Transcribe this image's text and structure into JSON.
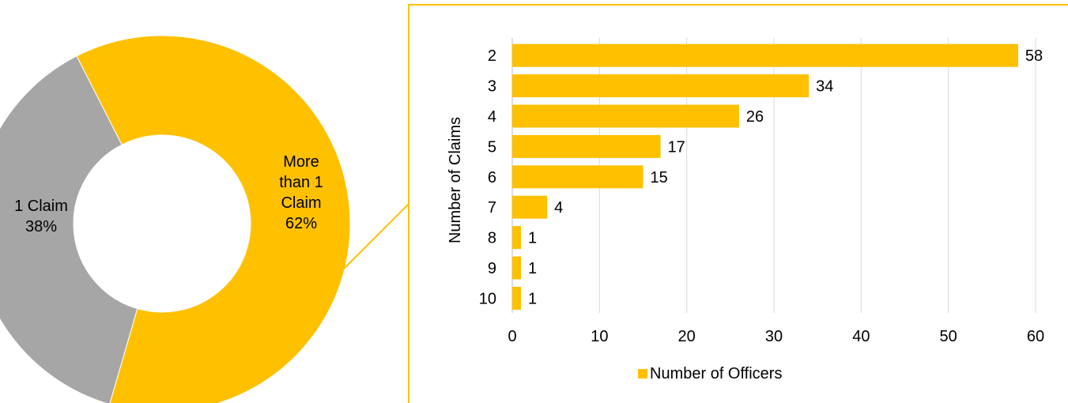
{
  "colors": {
    "accent": "#FFC000",
    "secondary": "#A6A6A6",
    "grid": "#D9D9D9",
    "text": "#000000"
  },
  "chart_data": [
    {
      "type": "pie",
      "variant": "donut",
      "slices": [
        {
          "label_lines": [
            "More",
            "than 1",
            "Claim",
            "62%"
          ],
          "category": "More than 1 Claim",
          "value": 62,
          "color": "#FFC000"
        },
        {
          "label_lines": [
            "1 Claim",
            "38%"
          ],
          "category": "1 Claim",
          "value": 38,
          "color": "#A6A6A6"
        }
      ]
    },
    {
      "type": "bar",
      "orientation": "horizontal",
      "categories": [
        "2",
        "3",
        "4",
        "5",
        "6",
        "7",
        "8",
        "9",
        "10"
      ],
      "series": [
        {
          "name": "Number of Officers",
          "values": [
            58,
            34,
            26,
            17,
            15,
            4,
            1,
            1,
            1
          ],
          "color": "#FFC000"
        }
      ],
      "xlim": [
        0,
        60
      ],
      "xticks": [
        "0",
        "10",
        "20",
        "30",
        "40",
        "50",
        "60"
      ],
      "ylabel": "Number of Claims",
      "xlabel": "",
      "grid": true,
      "legend": "bottom",
      "data_labels": true
    }
  ]
}
